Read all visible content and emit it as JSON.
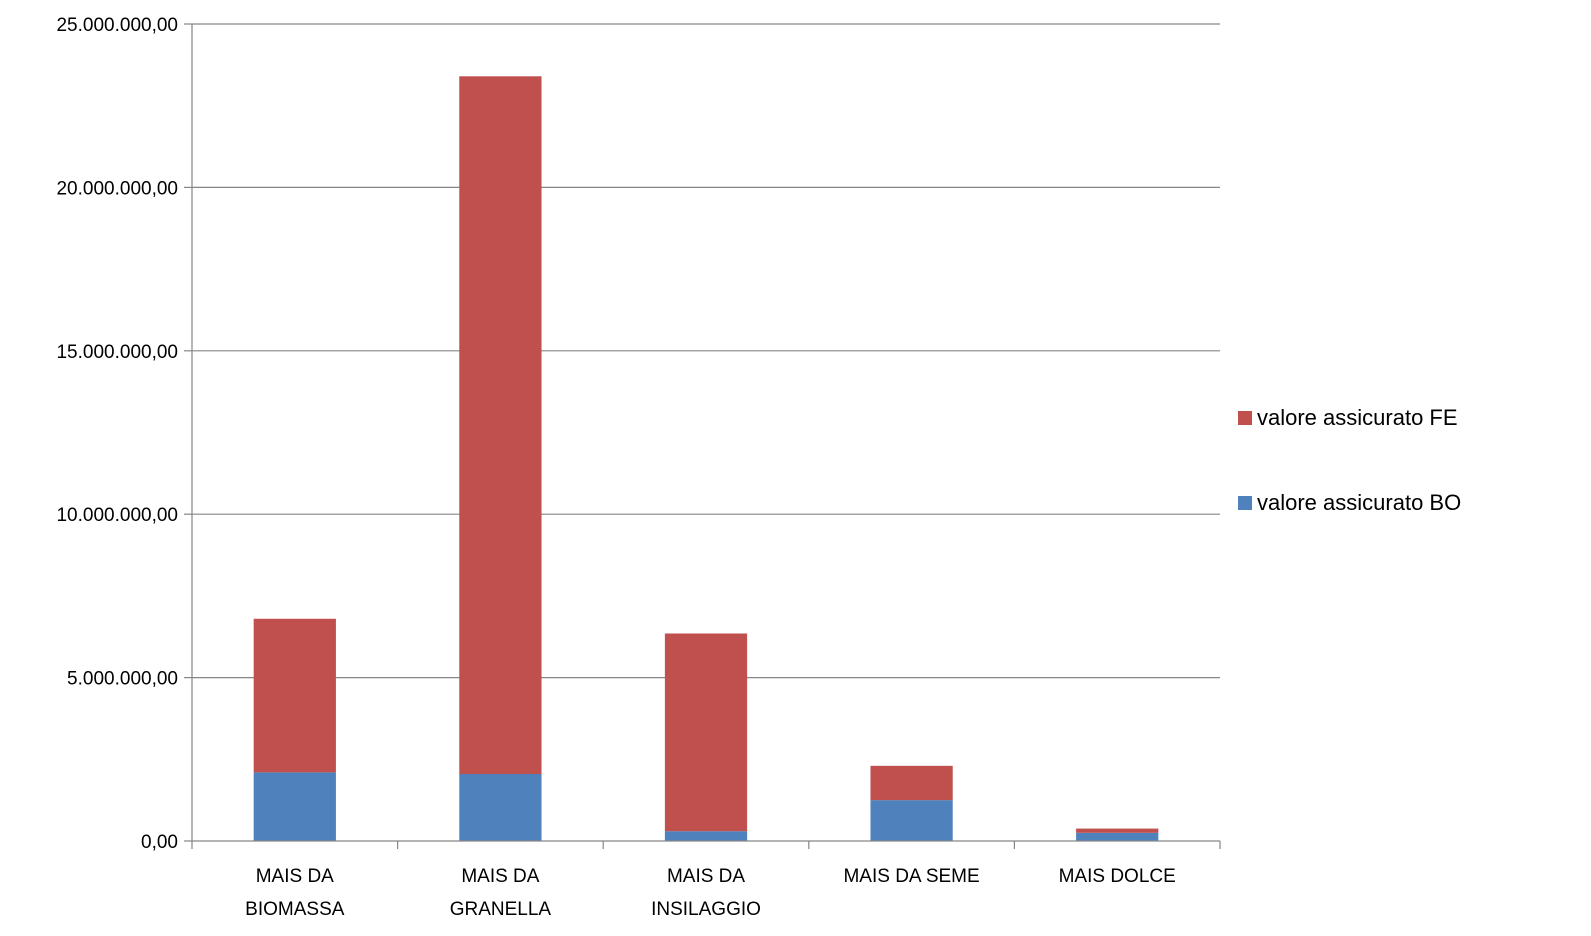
{
  "chart_data": {
    "type": "bar",
    "stacked": true,
    "title": "",
    "xlabel": "",
    "ylabel": "",
    "categories": [
      [
        "MAIS DA",
        "BIOMASSA"
      ],
      [
        "MAIS DA",
        "GRANELLA"
      ],
      [
        "MAIS DA",
        "INSILAGGIO"
      ],
      [
        "MAIS DA SEME"
      ],
      [
        "MAIS DOLCE"
      ]
    ],
    "series": [
      {
        "name": "valore assicurato BO",
        "color": "#4F81BD",
        "values": [
          2100000,
          2050000,
          300000,
          1250000,
          250000
        ]
      },
      {
        "name": "valore assicurato FE",
        "color": "#C0504D",
        "values": [
          4700000,
          21350000,
          6050000,
          1050000,
          130000
        ]
      }
    ],
    "ylim": [
      0,
      25000000
    ],
    "yticks": [
      0,
      5000000,
      10000000,
      15000000,
      20000000,
      25000000
    ],
    "ytick_labels": [
      "0,00",
      "5.000.000,00",
      "10.000.000,00",
      "15.000.000,00",
      "20.000.000,00",
      "25.000.000,00"
    ],
    "grid": true,
    "legend": {
      "position": "right",
      "items": [
        "valore assicurato FE",
        "valore assicurato BO"
      ]
    }
  }
}
